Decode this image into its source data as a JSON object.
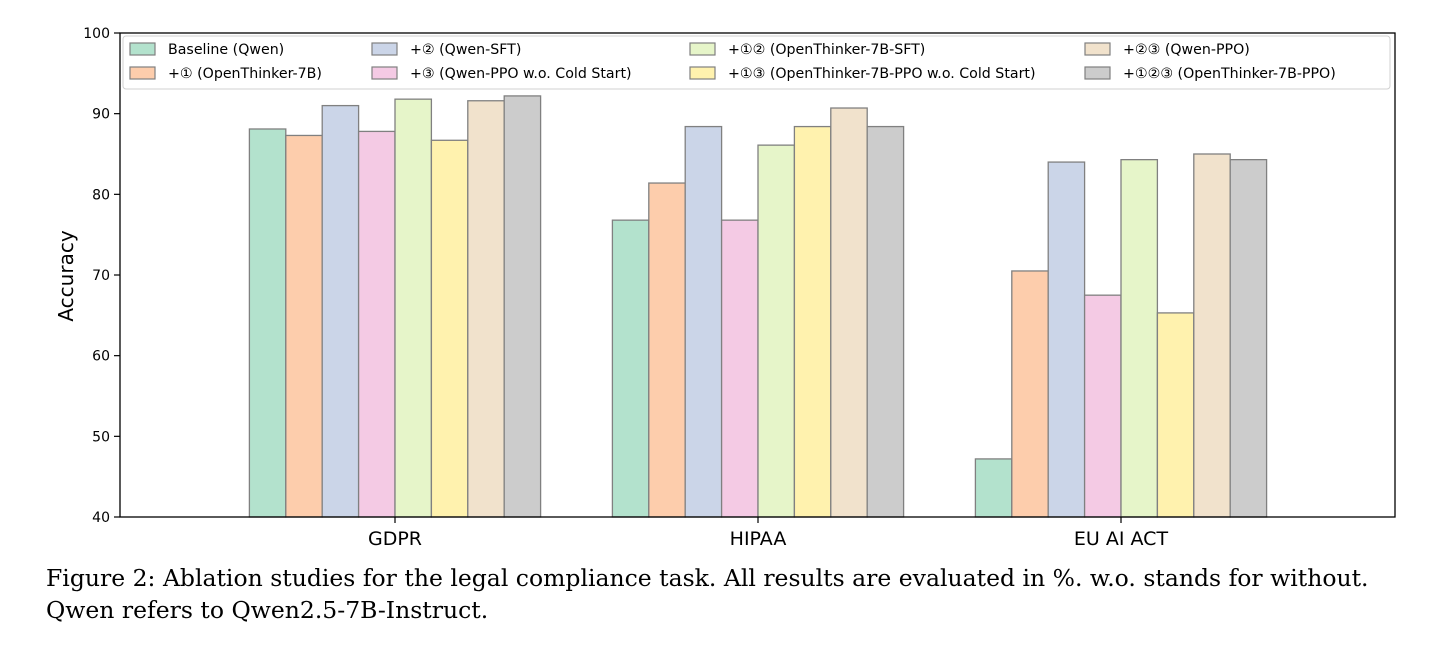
{
  "chart_data": {
    "type": "bar",
    "ylabel": "Accuracy",
    "xlabel": "",
    "ylim": [
      40,
      100
    ],
    "yticks": [
      40,
      50,
      60,
      70,
      80,
      90,
      100
    ],
    "grid": false,
    "legend_position": "top",
    "categories": [
      "GDPR",
      "HIPAA",
      "EU AI ACT"
    ],
    "series": [
      {
        "name": "Baseline (Qwen)",
        "color": "#b3e2cd",
        "values": [
          88.1,
          76.8,
          47.2
        ]
      },
      {
        "name": "+① (OpenThinker-7B)",
        "color": "#fdcdac",
        "values": [
          87.3,
          81.4,
          70.5
        ]
      },
      {
        "name": "+② (Qwen-SFT)",
        "color": "#cbd5e8",
        "values": [
          91.0,
          88.4,
          84.0
        ]
      },
      {
        "name": "+③ (Qwen-PPO w.o. Cold Start)",
        "color": "#f4cae4",
        "values": [
          87.8,
          76.8,
          67.5
        ]
      },
      {
        "name": "+①② (OpenThinker-7B-SFT)",
        "color": "#e6f5c9",
        "values": [
          91.8,
          86.1,
          84.3
        ]
      },
      {
        "name": "+①③ (OpenThinker-7B-PPO w.o. Cold Start)",
        "color": "#fff2ae",
        "values": [
          86.7,
          88.4,
          65.3
        ]
      },
      {
        "name": "+②③ (Qwen-PPO)",
        "color": "#f1e2cc",
        "values": [
          91.6,
          90.7,
          85.0
        ]
      },
      {
        "name": "+①②③ (OpenThinker-7B-PPO)",
        "color": "#cccccc",
        "values": [
          92.2,
          88.4,
          84.3
        ]
      }
    ]
  },
  "caption": {
    "line1": "Figure 2: Ablation studies for the legal compliance task. All results are evaluated in %. w.o. stands for without.",
    "line2": "Qwen refers to Qwen2.5-7B-Instruct."
  }
}
